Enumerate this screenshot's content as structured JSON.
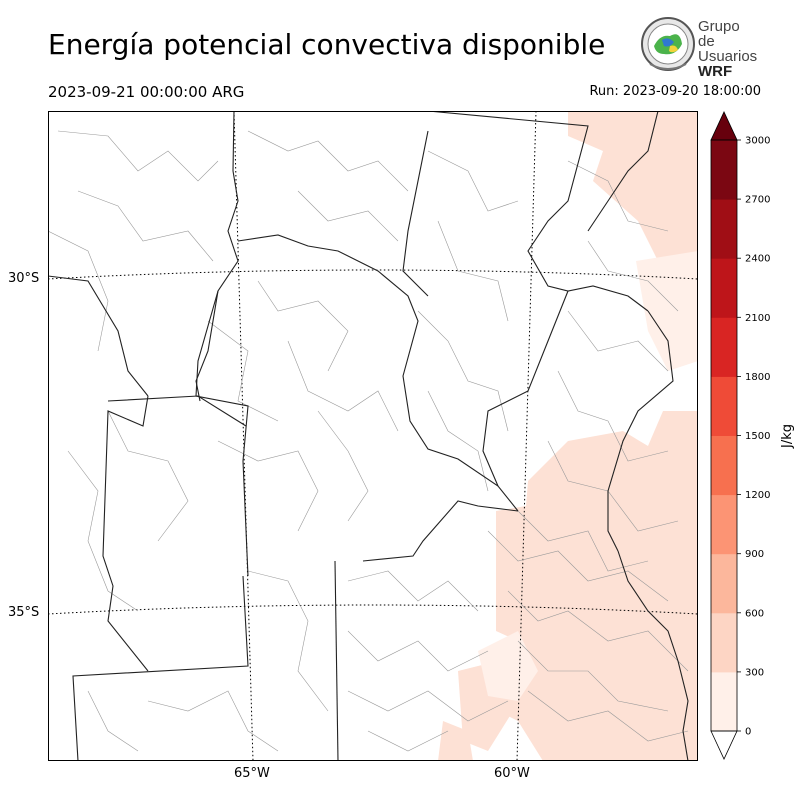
{
  "header": {
    "title": "Energía potencial convectiva disponible",
    "valid_time": "2023-09-21 00:00:00 ARG",
    "run_time": "Run: 2023-09-20 18:00:00"
  },
  "logo": {
    "line1": "Grupo de",
    "line2": "Usuarios",
    "line3": "WRF"
  },
  "map": {
    "lat_labels": [
      "30°S",
      "35°S"
    ],
    "lon_labels": [
      "65°W",
      "60°W"
    ]
  },
  "colorbar": {
    "unit": "J/kg",
    "ticks": [
      "0",
      "300",
      "600",
      "900",
      "1200",
      "1500",
      "1800",
      "2100",
      "2400",
      "2700",
      "3000"
    ],
    "colors": [
      "#fff0e9",
      "#fdd5c4",
      "#fcb79c",
      "#fc9474",
      "#f7704f",
      "#ef4b37",
      "#d92523",
      "#be151a",
      "#a00e15",
      "#7b0712"
    ],
    "over_color": "#67000d"
  }
}
